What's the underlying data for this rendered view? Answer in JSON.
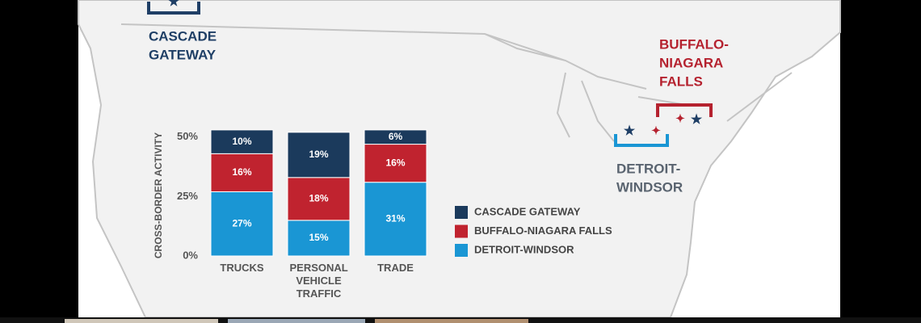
{
  "map_labels": {
    "cascade": [
      "CASCADE",
      "GATEWAY"
    ],
    "buffalo": [
      "BUFFALO-",
      "NIAGARA",
      "FALLS"
    ],
    "detroit": [
      "DETROIT-",
      "WINDSOR"
    ]
  },
  "chart_data": {
    "type": "stacked_bar",
    "ylabel": "CROSS-BORDER ACTIVITY",
    "categories": [
      "TRUCKS",
      "PERSONAL VEHICLE TRAFFIC",
      "TRADE"
    ],
    "series": [
      {
        "name": "DETROIT-WINDSOR",
        "color": "#1a96d4",
        "values": [
          27,
          15,
          31
        ],
        "value_labels": [
          "27%",
          "15%",
          "31%"
        ]
      },
      {
        "name": "BUFFALO-NIAGARA FALLS",
        "color": "#c0232f",
        "values": [
          16,
          18,
          16
        ],
        "value_labels": [
          "16%",
          "18%",
          "16%"
        ]
      },
      {
        "name": "CASCADE GATEWAY",
        "color": "#1b3a5c",
        "values": [
          10,
          19,
          6
        ],
        "value_labels": [
          "10%",
          "19%",
          "6%"
        ]
      }
    ],
    "ylim": [
      0,
      55
    ],
    "yticks": [
      {
        "value": 0,
        "label": "0%"
      },
      {
        "value": 25,
        "label": "25%"
      },
      {
        "value": 50,
        "label": "50%"
      }
    ],
    "legend": "right"
  }
}
